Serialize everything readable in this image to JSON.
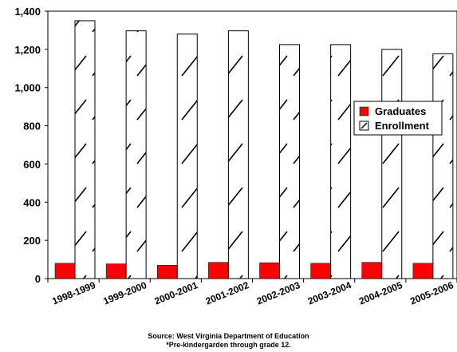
{
  "chart_data": {
    "type": "bar",
    "categories": [
      "1998-1999",
      "1999-2000",
      "2000-2001",
      "2001-2002",
      "2002-2003",
      "2003-2004",
      "2004-2005",
      "2005-2006"
    ],
    "series": [
      {
        "name": "Graduates",
        "values": [
          80,
          77,
          70,
          85,
          83,
          80,
          85,
          80
        ],
        "color": "#ff0000",
        "pattern": "solid"
      },
      {
        "name": "Enrollment",
        "values": [
          1350,
          1297,
          1280,
          1297,
          1225,
          1225,
          1200,
          1177
        ],
        "color": "#ffffff",
        "pattern": "diagonal-hatch"
      }
    ],
    "ylim": [
      0,
      1400
    ],
    "yticks": [
      "0",
      "200",
      "400",
      "600",
      "800",
      "1,000",
      "1,200",
      "1,400"
    ],
    "legend": {
      "position": "right",
      "entries": [
        "Graduates",
        "Enrollment"
      ]
    },
    "grid": false
  },
  "footnotes": {
    "source": "Source: West Virginia Department of Education",
    "note": "*Pre-kindergarden through grade 12."
  }
}
